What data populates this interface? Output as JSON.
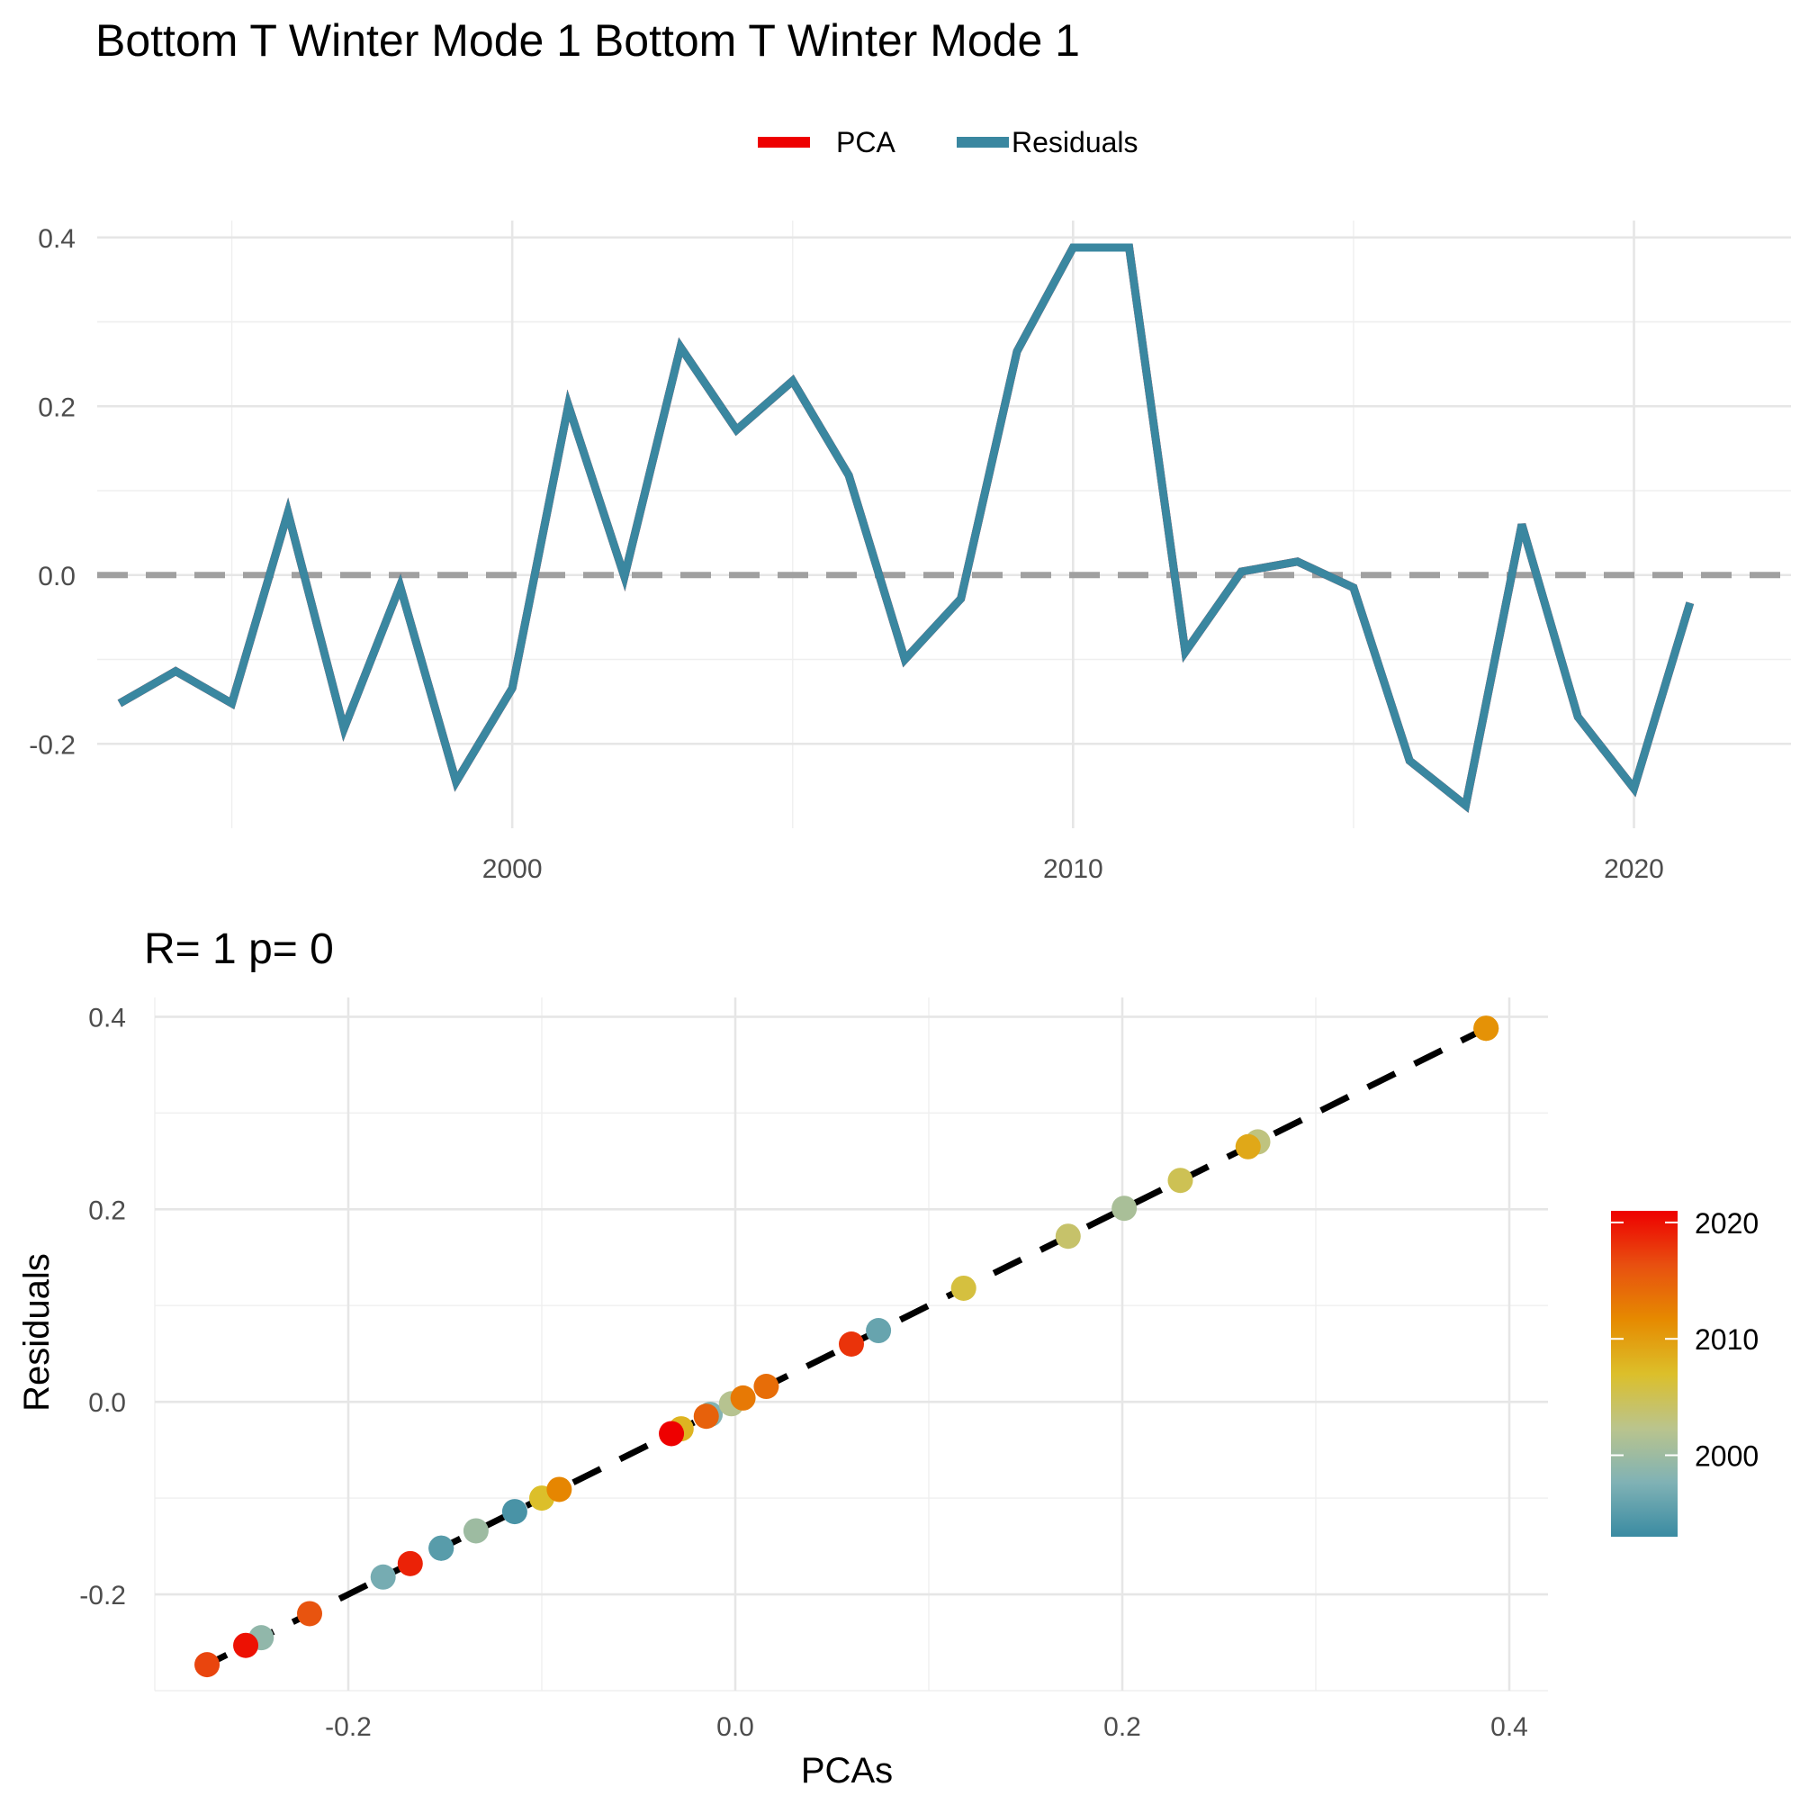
{
  "chart_data": [
    {
      "type": "line",
      "title": "Bottom T Winter Mode 1 Bottom T Winter Mode 1",
      "xlabel": "",
      "ylabel": "",
      "xlim": [
        1992.6,
        2022.8
      ],
      "ylim": [
        -0.3,
        0.42
      ],
      "x_ticks": [
        2000,
        2010,
        2020
      ],
      "y_ticks": [
        -0.2,
        0.0,
        0.2,
        0.4
      ],
      "y_tick_labels": [
        "-0.2",
        "0.0",
        "0.2",
        "0.4"
      ],
      "x_tick_labels": [
        "2000",
        "2010",
        "2020"
      ],
      "grid": true,
      "legend": {
        "position": "top",
        "entries": [
          {
            "label": "PCA",
            "color": "#ee0000"
          },
          {
            "label": "Residuals",
            "color": "#3a87a0"
          }
        ]
      },
      "reference_line": {
        "y": 0,
        "style": "dashed",
        "color": "#a0a0a0"
      },
      "x": [
        1993,
        1994,
        1995,
        1996,
        1997,
        1998,
        1999,
        2000,
        2001,
        2002,
        2003,
        2004,
        2005,
        2006,
        2007,
        2008,
        2009,
        2010,
        2011,
        2012,
        2013,
        2014,
        2015,
        2016,
        2017,
        2018,
        2019,
        2020,
        2021
      ],
      "series": [
        {
          "name": "PCA",
          "color": "#ee0000",
          "values": [
            -0.152,
            -0.114,
            -0.152,
            0.074,
            -0.182,
            -0.013,
            -0.245,
            -0.134,
            0.201,
            -0.002,
            0.27,
            0.172,
            0.23,
            0.118,
            -0.1,
            -0.028,
            0.265,
            0.388,
            0.388,
            -0.091,
            0.004,
            0.016,
            -0.015,
            -0.22,
            -0.273,
            0.06,
            -0.168,
            -0.253,
            -0.033
          ]
        },
        {
          "name": "Residuals",
          "color": "#3a87a0",
          "values": [
            -0.152,
            -0.114,
            -0.152,
            0.074,
            -0.182,
            -0.013,
            -0.245,
            -0.134,
            0.201,
            -0.002,
            0.27,
            0.172,
            0.23,
            0.118,
            -0.1,
            -0.028,
            0.265,
            0.388,
            0.388,
            -0.091,
            0.004,
            0.016,
            -0.015,
            -0.22,
            -0.273,
            0.06,
            -0.168,
            -0.253,
            -0.033
          ]
        }
      ]
    },
    {
      "type": "scatter",
      "title": "R= 1  p= 0",
      "xlabel": "PCAs",
      "ylabel": "Residuals",
      "xlim": [
        -0.3,
        0.42
      ],
      "ylim": [
        -0.3,
        0.42
      ],
      "x_ticks": [
        -0.2,
        0.0,
        0.2,
        0.4
      ],
      "x_tick_labels": [
        "-0.2",
        "0.0",
        "0.2",
        "0.4"
      ],
      "y_ticks": [
        -0.2,
        0.0,
        0.2,
        0.4
      ],
      "y_tick_labels": [
        "-0.2",
        "0.0",
        "0.2",
        "0.4"
      ],
      "grid": true,
      "fit_line": {
        "style": "dashed",
        "color": "#000000",
        "from": [
          -0.277,
          -0.277
        ],
        "to": [
          0.39,
          0.39
        ]
      },
      "color_scale": {
        "variable": "year",
        "range": [
          1993,
          2021
        ],
        "ticks": [
          2000,
          2010,
          2020
        ],
        "tick_labels": [
          "2000",
          "2010",
          "2020"
        ],
        "colors": [
          "#3a8ba2",
          "#80b2b5",
          "#bac48d",
          "#dcbf2a",
          "#e68a00",
          "#e85010",
          "#ee0000"
        ],
        "legend_position": "right"
      },
      "points": [
        {
          "x": -0.152,
          "y": -0.152,
          "year": 1993
        },
        {
          "x": -0.114,
          "y": -0.114,
          "year": 1994
        },
        {
          "x": -0.152,
          "y": -0.152,
          "year": 1995
        },
        {
          "x": 0.074,
          "y": 0.074,
          "year": 1996
        },
        {
          "x": -0.182,
          "y": -0.182,
          "year": 1997
        },
        {
          "x": -0.013,
          "y": -0.013,
          "year": 1998
        },
        {
          "x": -0.245,
          "y": -0.245,
          "year": 1999
        },
        {
          "x": -0.134,
          "y": -0.134,
          "year": 2000
        },
        {
          "x": 0.201,
          "y": 0.201,
          "year": 2001
        },
        {
          "x": -0.002,
          "y": -0.002,
          "year": 2002
        },
        {
          "x": 0.27,
          "y": 0.27,
          "year": 2003
        },
        {
          "x": 0.172,
          "y": 0.172,
          "year": 2004
        },
        {
          "x": 0.23,
          "y": 0.23,
          "year": 2005
        },
        {
          "x": 0.118,
          "y": 0.118,
          "year": 2006
        },
        {
          "x": -0.1,
          "y": -0.1,
          "year": 2007
        },
        {
          "x": -0.028,
          "y": -0.028,
          "year": 2008
        },
        {
          "x": 0.265,
          "y": 0.265,
          "year": 2009
        },
        {
          "x": 0.388,
          "y": 0.388,
          "year": 2010
        },
        {
          "x": 0.388,
          "y": 0.388,
          "year": 2011
        },
        {
          "x": -0.091,
          "y": -0.091,
          "year": 2012
        },
        {
          "x": 0.004,
          "y": 0.004,
          "year": 2013
        },
        {
          "x": 0.016,
          "y": 0.016,
          "year": 2014
        },
        {
          "x": -0.015,
          "y": -0.015,
          "year": 2015
        },
        {
          "x": -0.22,
          "y": -0.22,
          "year": 2016
        },
        {
          "x": -0.273,
          "y": -0.273,
          "year": 2017
        },
        {
          "x": 0.06,
          "y": 0.06,
          "year": 2018
        },
        {
          "x": -0.168,
          "y": -0.168,
          "year": 2019
        },
        {
          "x": -0.253,
          "y": -0.253,
          "year": 2020
        },
        {
          "x": -0.033,
          "y": -0.033,
          "year": 2021
        }
      ]
    }
  ]
}
